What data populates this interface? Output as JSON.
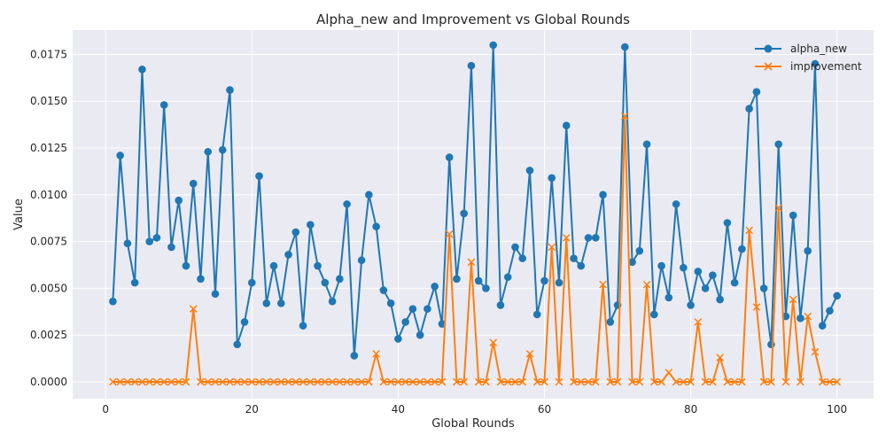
{
  "chart_data": {
    "type": "line",
    "title": "Alpha_new and Improvement vs Global Rounds",
    "xlabel": "Global Rounds",
    "ylabel": "Value",
    "xlim": [
      -4.5,
      105
    ],
    "ylim": [
      -0.0009,
      0.0188
    ],
    "xticks": [
      0,
      20,
      40,
      60,
      80,
      100
    ],
    "xtick_labels": [
      "0",
      "20",
      "40",
      "60",
      "80",
      "100"
    ],
    "yticks": [
      0,
      0.0025,
      0.005,
      0.0075,
      0.01,
      0.0125,
      0.015,
      0.0175
    ],
    "ytick_labels": [
      "0.0000",
      "0.0025",
      "0.0050",
      "0.0075",
      "0.0100",
      "0.0125",
      "0.0150",
      "0.0175"
    ],
    "grid": true,
    "legend_position": "top-right",
    "x": [
      1,
      2,
      3,
      4,
      5,
      6,
      7,
      8,
      9,
      10,
      11,
      12,
      13,
      14,
      15,
      16,
      17,
      18,
      19,
      20,
      21,
      22,
      23,
      24,
      25,
      26,
      27,
      28,
      29,
      30,
      31,
      32,
      33,
      34,
      35,
      36,
      37,
      38,
      39,
      40,
      41,
      42,
      43,
      44,
      45,
      46,
      47,
      48,
      49,
      50,
      51,
      52,
      53,
      54,
      55,
      56,
      57,
      58,
      59,
      60,
      61,
      62,
      63,
      64,
      65,
      66,
      67,
      68,
      69,
      70,
      71,
      72,
      73,
      74,
      75,
      76,
      77,
      78,
      79,
      80,
      81,
      82,
      83,
      84,
      85,
      86,
      87,
      88,
      89,
      90,
      91,
      92,
      93,
      94,
      95,
      96,
      97,
      98,
      99,
      100
    ],
    "series": [
      {
        "name": "alpha_new",
        "color": "#1f77b4",
        "marker": "circle",
        "values": [
          0.0043,
          0.0121,
          0.0074,
          0.0053,
          0.0167,
          0.0075,
          0.0077,
          0.0148,
          0.0072,
          0.0097,
          0.0062,
          0.0106,
          0.0055,
          0.0123,
          0.0047,
          0.0124,
          0.0156,
          0.002,
          0.0032,
          0.0053,
          0.011,
          0.0042,
          0.0062,
          0.0042,
          0.0068,
          0.008,
          0.003,
          0.0084,
          0.0062,
          0.0053,
          0.0043,
          0.0055,
          0.0095,
          0.0014,
          0.0065,
          0.01,
          0.0083,
          0.0049,
          0.0042,
          0.0023,
          0.0032,
          0.0039,
          0.0025,
          0.0039,
          0.0051,
          0.0031,
          0.012,
          0.0055,
          0.009,
          0.0169,
          0.0054,
          0.005,
          0.018,
          0.0041,
          0.0056,
          0.0072,
          0.0066,
          0.0113,
          0.0036,
          0.0054,
          0.0109,
          0.0053,
          0.0137,
          0.0066,
          0.0062,
          0.0077,
          0.0077,
          0.01,
          0.0032,
          0.0041,
          0.0179,
          0.0064,
          0.007,
          0.0127,
          0.0036,
          0.0062,
          0.0045,
          0.0095,
          0.0061,
          0.0041,
          0.0059,
          0.005,
          0.0057,
          0.0044,
          0.0085,
          0.0053,
          0.0071,
          0.0146,
          0.0155,
          0.005,
          0.002,
          0.0127,
          0.0035,
          0.0089,
          0.0034,
          0.007,
          0.017,
          0.003,
          0.0038,
          0.0046
        ]
      },
      {
        "name": "improvement",
        "color": "#ff7f0e",
        "marker": "x",
        "values": [
          0,
          0,
          0,
          0,
          0,
          0,
          0,
          0,
          0,
          0,
          0,
          0.0039,
          0,
          0,
          0,
          0,
          0,
          0,
          0,
          0,
          0,
          0,
          0,
          0,
          0,
          0,
          0,
          0,
          0,
          0,
          0,
          0,
          0,
          0,
          0,
          0,
          0.0015,
          0,
          0,
          0,
          0,
          0,
          0,
          0,
          0,
          0,
          0.0079,
          0,
          0,
          0.0064,
          0,
          0,
          0.0021,
          0,
          0,
          0,
          0,
          0.0015,
          0,
          0,
          0.0072,
          0,
          0.0077,
          0,
          0,
          0,
          0,
          0.0052,
          0,
          0,
          0.0142,
          0,
          0,
          0.0052,
          0,
          0,
          0.0005,
          0,
          0,
          0,
          0.0032,
          0,
          0,
          0.0013,
          0,
          0,
          0,
          0.0081,
          0.004,
          0,
          0,
          0.0093,
          0,
          0.0044,
          0,
          0.0035,
          0.0016,
          0,
          0,
          0
        ]
      }
    ]
  }
}
